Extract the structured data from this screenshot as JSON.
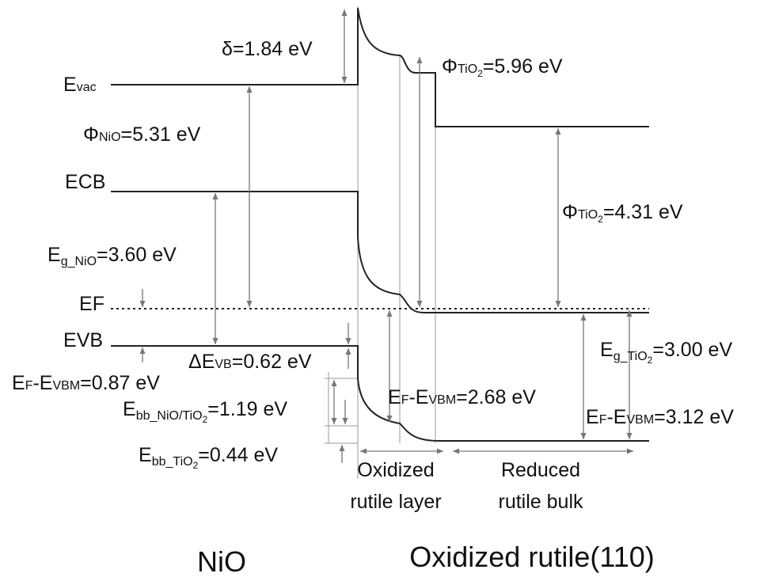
{
  "labels": {
    "delta": [
      "δ=1.84 eV"
    ],
    "evac": [
      "E",
      "vac"
    ],
    "phi_nio": [
      "Φ",
      "NiO",
      "=5.31 eV"
    ],
    "ecb": [
      "E",
      "CB"
    ],
    "eg_nio": [
      "E",
      "g_NiO",
      "=3.60 eV"
    ],
    "ef": [
      "E",
      "F"
    ],
    "evb": [
      "E",
      "VB"
    ],
    "delta_evb": [
      "ΔE",
      "VB",
      "=0.62 eV"
    ],
    "ef_evbm_nio": [
      "E",
      "F",
      "-E",
      "VBM",
      "=0.87 eV"
    ],
    "ebb_interface": [
      "E",
      "bb_NiO/TiO",
      "2",
      "=1.19 eV"
    ],
    "ebb_tio2": [
      "E",
      "bb_TiO",
      "2",
      "=0.44 eV"
    ],
    "ef_evbm_layer": [
      "E",
      "F",
      "-E",
      "VBM",
      "=2.68 eV"
    ],
    "phi_tio2_layer": [
      "Φ",
      "TiO",
      "2",
      "=5.96 eV"
    ],
    "phi_tio2_bulk": [
      "Φ",
      "TiO",
      "2",
      "=4.31 eV"
    ],
    "eg_tio2": [
      "E",
      "g_TiO",
      "2",
      "=3.00 eV"
    ],
    "ef_evbm_bulk": [
      "E",
      "F",
      "-E",
      "VBM",
      "=3.12 eV"
    ]
  },
  "regions": {
    "oxidized_layer": [
      "Oxidized",
      "rutile layer"
    ],
    "reduced_bulk": [
      "Reduced",
      "rutile bulk"
    ]
  },
  "materials": {
    "left": "NiO",
    "right": "Oxidized rutile(110)"
  }
}
